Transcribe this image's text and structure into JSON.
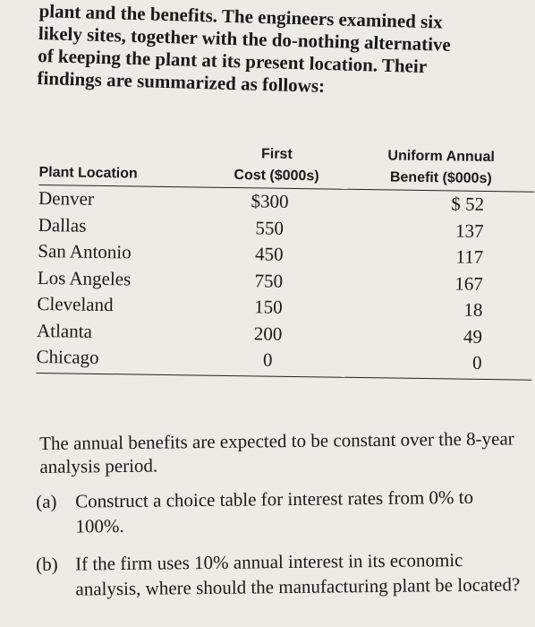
{
  "intro": {
    "lines": [
      "plant and the benefits. The engineers examined six",
      "likely sites, together with the do-nothing alternative",
      "of keeping the plant at its present location. Their",
      "findings are summarized as follows:"
    ]
  },
  "table": {
    "headers": {
      "col1": "Plant Location",
      "col2_top": "First",
      "col2_bottom": "Cost ($000s)",
      "col3_top": "Uniform Annual",
      "col3_bottom": "Benefit ($000s)"
    },
    "rows": [
      {
        "location": "Denver",
        "cost": "$300",
        "benefit": "$ 52"
      },
      {
        "location": "Dallas",
        "cost": "550",
        "benefit": "137"
      },
      {
        "location": "San Antonio",
        "cost": "450",
        "benefit": "117"
      },
      {
        "location": "Los Angeles",
        "cost": "750",
        "benefit": "167"
      },
      {
        "location": "Cleveland",
        "cost": "150",
        "benefit": "18"
      },
      {
        "location": "Atlanta",
        "cost": "200",
        "benefit": "49"
      },
      {
        "location": "Chicago",
        "cost": "0",
        "benefit": "0"
      }
    ]
  },
  "paragraph": "The annual benefits are expected to be constant over the 8-year analysis period.",
  "items": {
    "a": {
      "label": "(a)",
      "text": "Construct a choice table for interest rates from 0% to 100%."
    },
    "b": {
      "label": "(b)",
      "text": "If the firm uses 10% annual interest in its economic analysis, where should the manufacturing plant be located?"
    }
  }
}
